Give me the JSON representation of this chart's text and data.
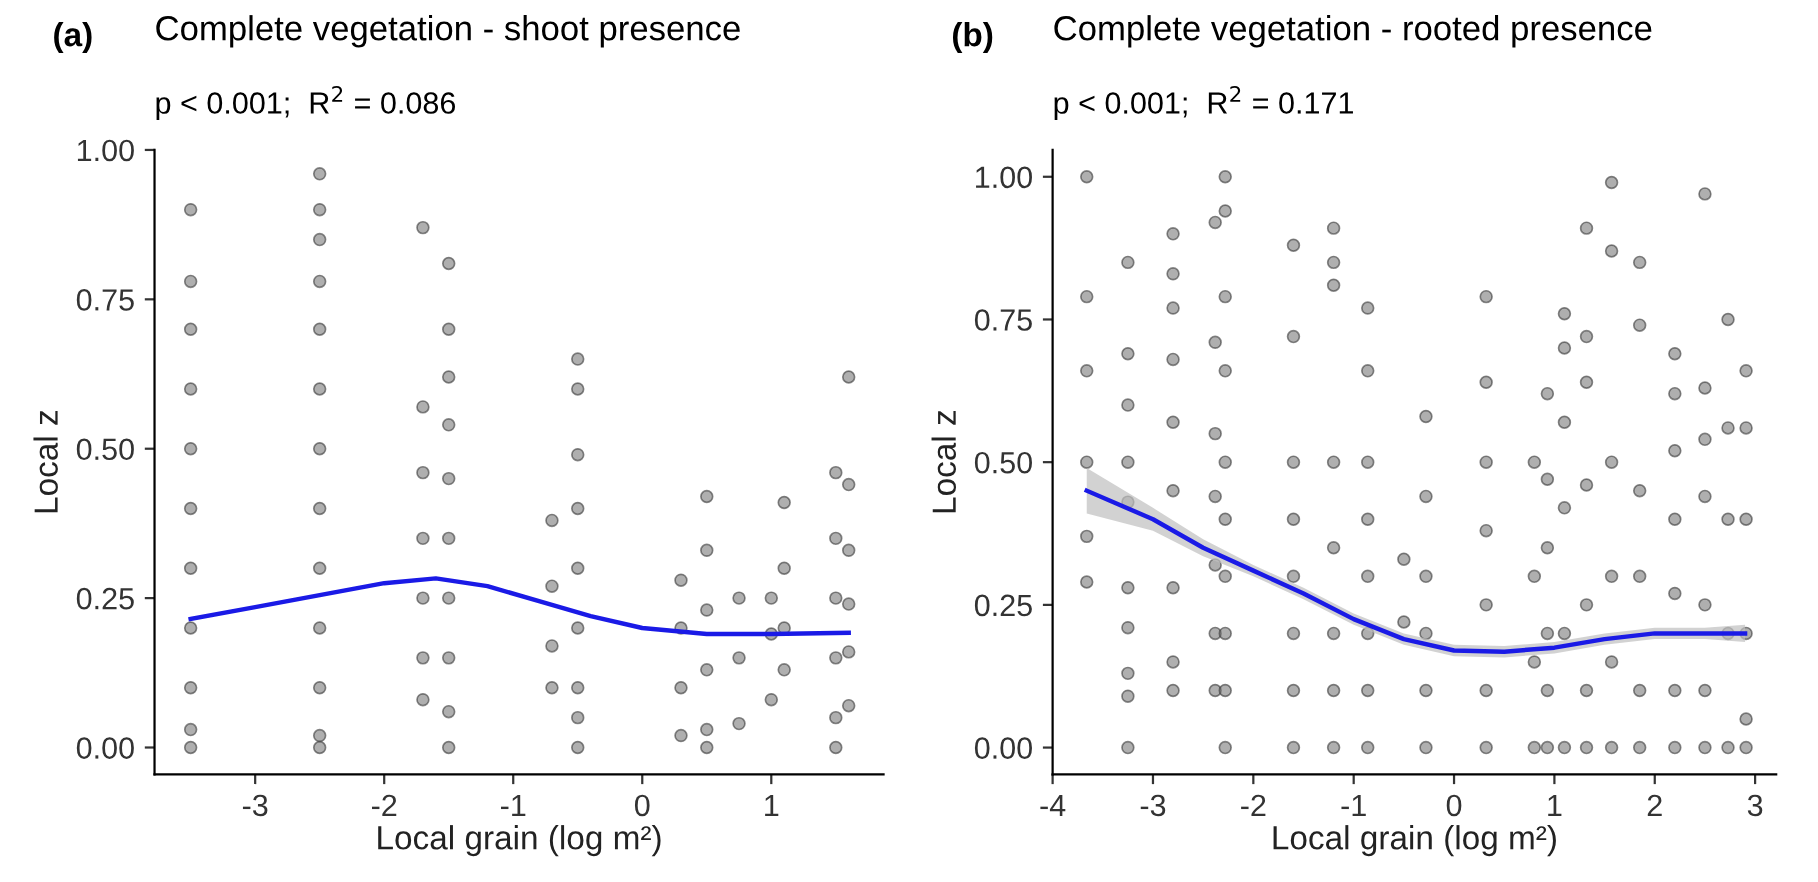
{
  "chart_data": [
    {
      "type": "scatter",
      "title": "Complete vegetation - shoot presence",
      "subtitle": "p < 0.001;  R$^{2}$ = 0.086",
      "xlabel": "Local grain (log m²)",
      "ylabel": "Local z",
      "annotations": [
        "(a)"
      ],
      "xlim": [
        -3.78,
        1.87
      ],
      "ylim": [
        -0.045,
        1.0
      ],
      "xticks": [
        -3,
        -2,
        -1,
        0,
        1
      ],
      "yticks": [
        {
          "value": 0,
          "label": "0.00"
        },
        {
          "value": 0.25,
          "label": "0.25"
        },
        {
          "value": 0.5,
          "label": "0.50"
        },
        {
          "value": 0.75,
          "label": "0.75"
        },
        {
          "value": 1.0,
          "label": "1.00"
        }
      ],
      "grid": false,
      "legend": false,
      "series": [
        {
          "color": "#7a7a7a",
          "marker": "circle",
          "x": [
            -3.5,
            -3.5,
            -3.5,
            -3.5,
            -3.5,
            -3.5,
            -3.5,
            -3.5,
            -3.5,
            -3.5,
            -3.5,
            -2.5,
            -2.5,
            -2.5,
            -2.5,
            -2.5,
            -2.5,
            -2.5,
            -2.5,
            -2.5,
            -2.5,
            -2.5,
            -2.5,
            -2.5,
            -1.7,
            -1.7,
            -1.7,
            -1.7,
            -1.7,
            -1.7,
            -1.7,
            -1.5,
            -1.5,
            -1.5,
            -1.5,
            -1.5,
            -1.5,
            -1.5,
            -1.5,
            -1.5,
            -1.5,
            -0.7,
            -0.7,
            -0.7,
            -0.7,
            -0.5,
            -0.5,
            -0.5,
            -0.5,
            -0.5,
            -0.5,
            -0.5,
            -0.5,
            -0.5,
            0.3,
            0.3,
            0.3,
            0.3,
            0.5,
            0.5,
            0.5,
            0.5,
            0.5,
            0.5,
            0.75,
            0.75,
            0.75,
            1.0,
            1.0,
            1.0,
            1.1,
            1.1,
            1.1,
            1.1,
            1.5,
            1.5,
            1.5,
            1.5,
            1.5,
            1.5,
            1.6,
            1.6,
            1.6,
            1.6,
            1.6,
            1.6
          ],
          "values": [
            0,
            0.9,
            0.78,
            0.7,
            0.6,
            0.5,
            0.4,
            0.3,
            0.2,
            0.1,
            0.03,
            0,
            0.96,
            0.9,
            0.85,
            0.78,
            0.7,
            0.6,
            0.5,
            0.4,
            0.3,
            0.2,
            0.1,
            0.02,
            0.87,
            0.57,
            0.46,
            0.35,
            0.25,
            0.15,
            0.08,
            0,
            0.81,
            0.7,
            0.62,
            0.54,
            0.45,
            0.35,
            0.25,
            0.15,
            0.06,
            0.38,
            0.27,
            0.17,
            0.1,
            0,
            0.65,
            0.6,
            0.49,
            0.4,
            0.3,
            0.2,
            0.1,
            0.05,
            0.28,
            0.2,
            0.1,
            0.02,
            0,
            0.42,
            0.33,
            0.23,
            0.13,
            0.03,
            0.25,
            0.15,
            0.04,
            0.25,
            0.19,
            0.08,
            0.41,
            0.3,
            0.2,
            0.13,
            0,
            0.46,
            0.35,
            0.25,
            0.15,
            0.05,
            0.62,
            0.44,
            0.33,
            0.24,
            0.16,
            0.07
          ]
        },
        {
          "type": "line",
          "color": "#1a1ae6",
          "x": [
            -3.5,
            -3,
            -2.5,
            -2,
            -1.6,
            -1.2,
            -0.8,
            -0.4,
            0,
            0.5,
            1,
            1.6
          ],
          "values": [
            0.215,
            0.235,
            0.255,
            0.275,
            0.283,
            0.27,
            0.245,
            0.22,
            0.2,
            0.19,
            0.19,
            0.192
          ]
        }
      ]
    },
    {
      "type": "scatter",
      "title": "Complete vegetation - rooted presence",
      "subtitle": "p < 0.001;  R$^{2}$ = 0.171",
      "xlabel": "Local grain (log m²)",
      "ylabel": "Local z",
      "annotations": [
        "(b)"
      ],
      "xlim": [
        -4.0,
        3.21
      ],
      "ylim": [
        -0.047,
        1.047
      ],
      "xticks": [
        -4,
        -3,
        -2,
        -1,
        0,
        1,
        2,
        3
      ],
      "yticks": [
        {
          "value": 0,
          "label": "0.00"
        },
        {
          "value": 0.25,
          "label": "0.25"
        },
        {
          "value": 0.5,
          "label": "0.50"
        },
        {
          "value": 0.75,
          "label": "0.75"
        },
        {
          "value": 1.0,
          "label": "1.00"
        }
      ],
      "grid": false,
      "legend": false,
      "series": [
        {
          "color": "#7a7a7a",
          "marker": "circle",
          "x": [
            -3.66,
            -3.66,
            -3.66,
            -3.66,
            -3.66,
            -3.66,
            -3.25,
            -3.25,
            -3.25,
            -3.25,
            -3.25,
            -3.25,
            -3.25,
            -3.25,
            -3.25,
            -3.25,
            -2.8,
            -2.8,
            -2.8,
            -2.8,
            -2.8,
            -2.8,
            -2.8,
            -2.8,
            -2.8,
            -2.38,
            -2.38,
            -2.38,
            -2.38,
            -2.38,
            -2.38,
            -2.38,
            -2.28,
            -2.28,
            -2.28,
            -2.28,
            -2.28,
            -2.28,
            -2.28,
            -2.28,
            -2.28,
            -2.28,
            -1.6,
            -1.6,
            -1.6,
            -1.6,
            -1.6,
            -1.6,
            -1.6,
            -1.6,
            -1.2,
            -1.2,
            -1.2,
            -1.2,
            -1.2,
            -1.2,
            -1.2,
            -1.2,
            -0.86,
            -0.86,
            -0.86,
            -0.86,
            -0.86,
            -0.86,
            -0.86,
            -0.86,
            -0.5,
            -0.5,
            -0.28,
            -0.28,
            -0.28,
            -0.28,
            -0.28,
            -0.28,
            0.32,
            0.32,
            0.32,
            0.32,
            0.32,
            0.32,
            0.32,
            0.8,
            0.8,
            0.8,
            0.8,
            0.93,
            0.93,
            0.93,
            0.93,
            0.93,
            0.93,
            1.1,
            1.1,
            1.1,
            1.1,
            1.1,
            1.1,
            1.32,
            1.32,
            1.32,
            1.32,
            1.32,
            1.32,
            1.32,
            1.57,
            1.57,
            1.57,
            1.57,
            1.57,
            1.57,
            1.85,
            1.85,
            1.85,
            1.85,
            1.85,
            1.85,
            2.2,
            2.2,
            2.2,
            2.2,
            2.2,
            2.2,
            2.2,
            2.5,
            2.5,
            2.5,
            2.5,
            2.5,
            2.5,
            2.5,
            2.73,
            2.73,
            2.73,
            2.73,
            2.73,
            2.91,
            2.91,
            2.91,
            2.91,
            2.91,
            2.91
          ],
          "values": [
            1.0,
            0.79,
            0.66,
            0.5,
            0.37,
            0.29,
            0,
            0.85,
            0.69,
            0.6,
            0.5,
            0.43,
            0.28,
            0.21,
            0.13,
            0.09,
            0.9,
            0.83,
            0.77,
            0.68,
            0.57,
            0.45,
            0.28,
            0.15,
            0.1,
            0.92,
            0.71,
            0.55,
            0.44,
            0.32,
            0.2,
            0.1,
            0,
            1.0,
            0.94,
            0.79,
            0.66,
            0.5,
            0.4,
            0.3,
            0.2,
            0.1,
            0,
            0.88,
            0.72,
            0.5,
            0.4,
            0.3,
            0.2,
            0.1,
            0,
            0.91,
            0.85,
            0.81,
            0.5,
            0.35,
            0.2,
            0.1,
            0,
            0.77,
            0.66,
            0.5,
            0.4,
            0.3,
            0.2,
            0.1,
            0.33,
            0.22,
            0,
            0.58,
            0.44,
            0.3,
            0.2,
            0.1,
            0,
            0.79,
            0.64,
            0.5,
            0.38,
            0.25,
            0.1,
            0,
            0.5,
            0.3,
            0.15,
            0,
            0.62,
            0.47,
            0.35,
            0.2,
            0.1,
            0,
            0.76,
            0.7,
            0.57,
            0.42,
            0.2,
            0,
            0.91,
            0.72,
            0.64,
            0.46,
            0.25,
            0.1,
            0,
            0.99,
            0.87,
            0.5,
            0.3,
            0.15,
            0,
            0.85,
            0.74,
            0.45,
            0.3,
            0.1,
            0,
            0.69,
            0.62,
            0.52,
            0.4,
            0.27,
            0.1,
            0,
            0.97,
            0.63,
            0.54,
            0.44,
            0.25,
            0.1,
            0,
            0.75,
            0.56,
            0.4,
            0.2,
            0,
            0.66,
            0.56,
            0.4,
            0.2,
            0.05
          ]
        },
        {
          "type": "line",
          "color": "#1a1ae6",
          "x": [
            -3.66,
            -3,
            -2.5,
            -2,
            -1.5,
            -1,
            -0.5,
            0,
            0.5,
            1,
            1.5,
            2,
            2.5,
            2.9
          ],
          "values": [
            0.45,
            0.4,
            0.35,
            0.31,
            0.27,
            0.225,
            0.19,
            0.17,
            0.168,
            0.175,
            0.19,
            0.2,
            0.2,
            0.2
          ],
          "lower": [
            0.41,
            0.38,
            0.335,
            0.3,
            0.26,
            0.215,
            0.18,
            0.16,
            0.158,
            0.165,
            0.18,
            0.19,
            0.19,
            0.185
          ],
          "upper": [
            0.49,
            0.42,
            0.365,
            0.32,
            0.28,
            0.235,
            0.2,
            0.18,
            0.178,
            0.185,
            0.2,
            0.21,
            0.21,
            0.215
          ]
        }
      ]
    }
  ]
}
